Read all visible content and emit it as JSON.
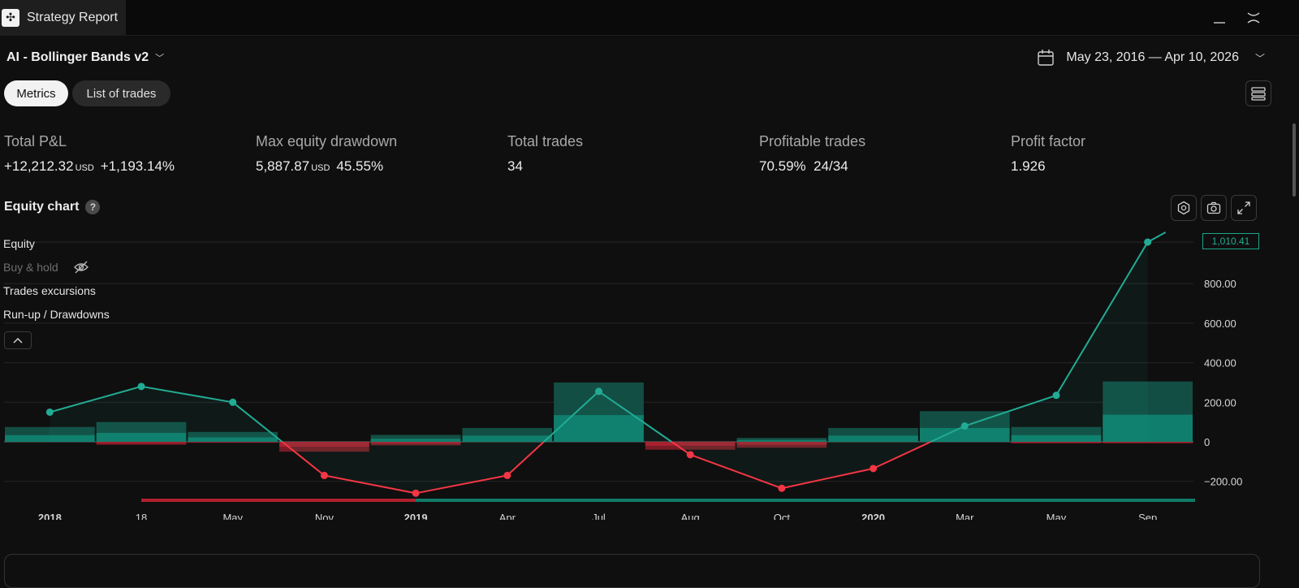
{
  "app": {
    "tab_title": "Strategy Report",
    "logo_icon": "tradingview-logo-icon"
  },
  "header": {
    "strategy_name": "AI - Bollinger Bands v2",
    "date_range": "May 23, 2016 — Apr 10, 2026"
  },
  "tabs": [
    {
      "label": "Metrics",
      "active": true
    },
    {
      "label": "List of trades",
      "active": false
    }
  ],
  "metrics": {
    "total_pnl": {
      "label": "Total P&L",
      "value": "+12,212.32",
      "unit": "USD",
      "percent": "+1,193.14%"
    },
    "max_dd": {
      "label": "Max equity drawdown",
      "value": "5,887.87",
      "unit": "USD",
      "percent": "45.55%"
    },
    "total_trades": {
      "label": "Total trades",
      "value": "34"
    },
    "profitable": {
      "label": "Profitable trades",
      "percent": "70.59%",
      "ratio": "24/34"
    },
    "profit_factor": {
      "label": "Profit factor",
      "value": "1.926"
    }
  },
  "equity_chart": {
    "title": "Equity chart",
    "help": "?",
    "legend": {
      "equity": "Equity",
      "buy_hold": "Buy & hold",
      "excursions": "Trades excursions",
      "runup": "Run-up / Drawdowns"
    },
    "last_value_badge": "1,010.41"
  },
  "colors": {
    "positive": "#22ab94",
    "negative": "#f23645",
    "background": "#0f0f0f"
  },
  "chart_data": {
    "type": "line",
    "x": [
      "2018",
      "18",
      "May",
      "Nov",
      "2019",
      "Apr",
      "Jul",
      "Aug",
      "Oct",
      "2020",
      "Mar",
      "May",
      "Sep"
    ],
    "bold_x": [
      "2018",
      "2019",
      "2020"
    ],
    "ylim": [
      -300,
      1050
    ],
    "y_ticks": [
      "−200.00",
      "0",
      "200.00",
      "400.00",
      "600.00",
      "800.00"
    ],
    "y_tick_values": [
      -200,
      0,
      200,
      400,
      600,
      800
    ],
    "series": [
      {
        "values": [
          150,
          280,
          200,
          -170,
          -260,
          -170,
          255,
          -65,
          -235,
          -135,
          80,
          235,
          1010
        ]
      }
    ],
    "runup_bars": [
      {
        "up": 75,
        "down": 0
      },
      {
        "up": 100,
        "down": -15
      },
      {
        "up": 50,
        "down": -5
      },
      {
        "up": 0,
        "down": -50
      },
      {
        "up": 35,
        "down": -18
      },
      {
        "up": 70,
        "down": 0
      },
      {
        "up": 300,
        "down": 0
      },
      {
        "up": 0,
        "down": -40
      },
      {
        "up": 20,
        "down": -30
      },
      {
        "up": 70,
        "down": 0
      },
      {
        "up": 155,
        "down": 0
      },
      {
        "up": 75,
        "down": -8
      },
      {
        "up": 305,
        "down": -8
      }
    ]
  }
}
